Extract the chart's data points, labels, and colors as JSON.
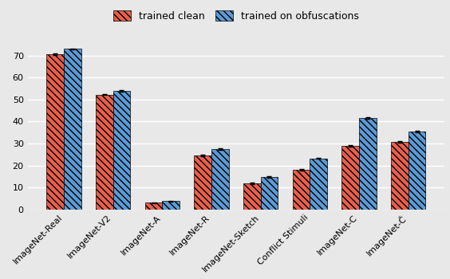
{
  "categories": [
    "ImageNet-Real",
    "ImageNet-V2",
    "ImageNet-A",
    "ImageNet-R",
    "ImageNet-Sketch",
    "Conflict Stimuli",
    "ImageNet-C",
    "ImageNet-Č"
  ],
  "clean_values": [
    70.5,
    52.3,
    3.2,
    24.5,
    12.0,
    18.0,
    29.0,
    30.8
  ],
  "clean_errors": [
    0.3,
    0.3,
    0.15,
    0.4,
    0.3,
    0.3,
    0.3,
    0.3
  ],
  "obfusc_values": [
    73.0,
    54.0,
    3.8,
    27.5,
    14.8,
    23.3,
    41.5,
    35.5
  ],
  "obfusc_errors": [
    0.3,
    0.3,
    0.15,
    0.4,
    0.3,
    0.3,
    0.4,
    0.3
  ],
  "clean_color": "#E8604C",
  "obfusc_color": "#5B9BD5",
  "hatch": "\\\\\\\\",
  "bar_width": 0.35,
  "ylim": [
    0,
    80
  ],
  "yticks": [
    0,
    10,
    20,
    30,
    40,
    50,
    60,
    70
  ],
  "legend_clean": "trained clean",
  "legend_obfusc": "trained on obfuscations",
  "background_color": "#E8E8E8",
  "grid_color": "#D8D8D8",
  "font_size": 9,
  "label_fontsize": 8
}
